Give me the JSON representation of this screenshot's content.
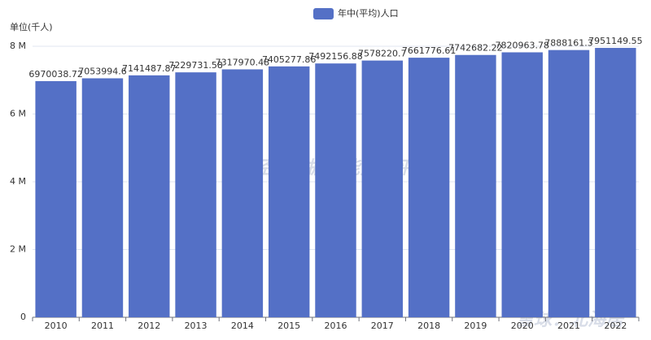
{
  "chart_data": {
    "type": "bar",
    "legend": "年中(平均)人口",
    "unit_label": "单位(千人)",
    "categories": [
      "2010",
      "2011",
      "2012",
      "2013",
      "2014",
      "2015",
      "2016",
      "2017",
      "2018",
      "2019",
      "2020",
      "2021",
      "2022"
    ],
    "series": [
      {
        "name": "年中(平均)人口",
        "color": "#5470c6",
        "values": [
          6970038.72,
          7053994.6,
          7141487.87,
          7229731.58,
          7317970.48,
          7405277.86,
          7492156.88,
          7578220.7,
          7661776.61,
          7742682.22,
          7820963.78,
          7888161.3,
          7951149.55
        ]
      }
    ],
    "ylim": [
      0,
      8000000
    ],
    "yticks": [
      0,
      {
        "value": 2000000,
        "label": "2 M"
      },
      {
        "value": 4000000,
        "label": "4 M"
      },
      {
        "value": 6000000,
        "label": "6 M"
      },
      {
        "value": 8000000,
        "label": "8 M"
      }
    ],
    "grid": true,
    "legend_position": "top",
    "watermarks": [
      "经济数据智能分析平台",
      "雪球：北海居"
    ]
  }
}
